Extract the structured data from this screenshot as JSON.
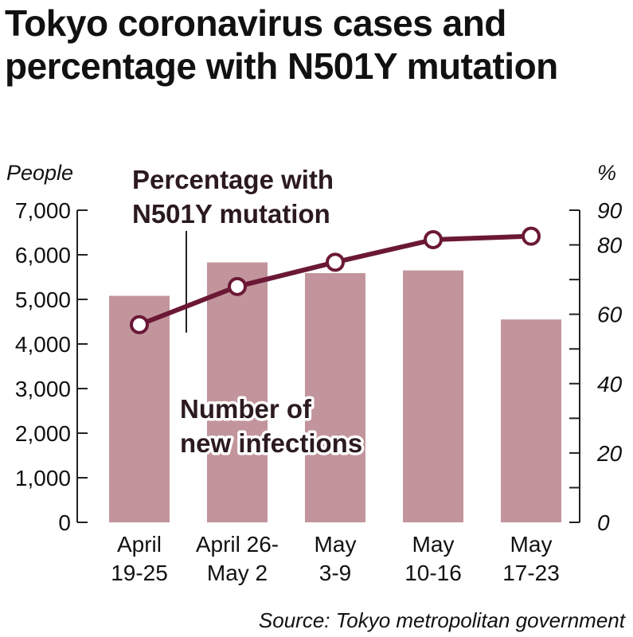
{
  "title": "Tokyo coronavirus cases and percentage with N501Y mutation",
  "source": "Source: Tokyo metropolitan government",
  "colors": {
    "bar": "#c2959c",
    "line": "#6b1836",
    "axis": "#222222",
    "text": "#111111"
  },
  "chart_data": {
    "type": "bar",
    "categories": [
      [
        "April",
        "19-25"
      ],
      [
        "April 26-",
        "May 2"
      ],
      [
        "May",
        "3-9"
      ],
      [
        "May",
        "10-16"
      ],
      [
        "May",
        "17-23"
      ]
    ],
    "series": [
      {
        "name": "Number of new infections",
        "type": "bar",
        "axis": "left",
        "values": [
          5080,
          5830,
          5590,
          5650,
          4550
        ]
      },
      {
        "name": "Percentage with N501Y mutation",
        "type": "line",
        "axis": "right",
        "values": [
          57,
          68,
          75,
          81.5,
          82.5
        ]
      }
    ],
    "left_axis": {
      "unit_label": "People",
      "ylim": [
        0,
        7000
      ],
      "ticks": [
        0,
        1000,
        2000,
        3000,
        4000,
        5000,
        6000,
        7000
      ],
      "tick_labels": [
        "0",
        "1,000",
        "2,000",
        "3,000",
        "4,000",
        "5,000",
        "6,000",
        "7,000"
      ]
    },
    "right_axis": {
      "unit_label": "%",
      "ylim": [
        0,
        90
      ],
      "ticks": [
        0,
        10,
        20,
        30,
        40,
        50,
        60,
        70,
        80,
        90
      ],
      "labeled_ticks": [
        0,
        20,
        40,
        60,
        80,
        90
      ],
      "tick_labels": [
        "0",
        "20",
        "40",
        "60",
        "80",
        "90"
      ]
    },
    "annotations": {
      "line_label": [
        "Percentage with",
        "N501Y mutation"
      ],
      "bar_label": [
        "Number of",
        "new infections"
      ]
    },
    "grid": false,
    "legend": "none (inline annotations)"
  }
}
